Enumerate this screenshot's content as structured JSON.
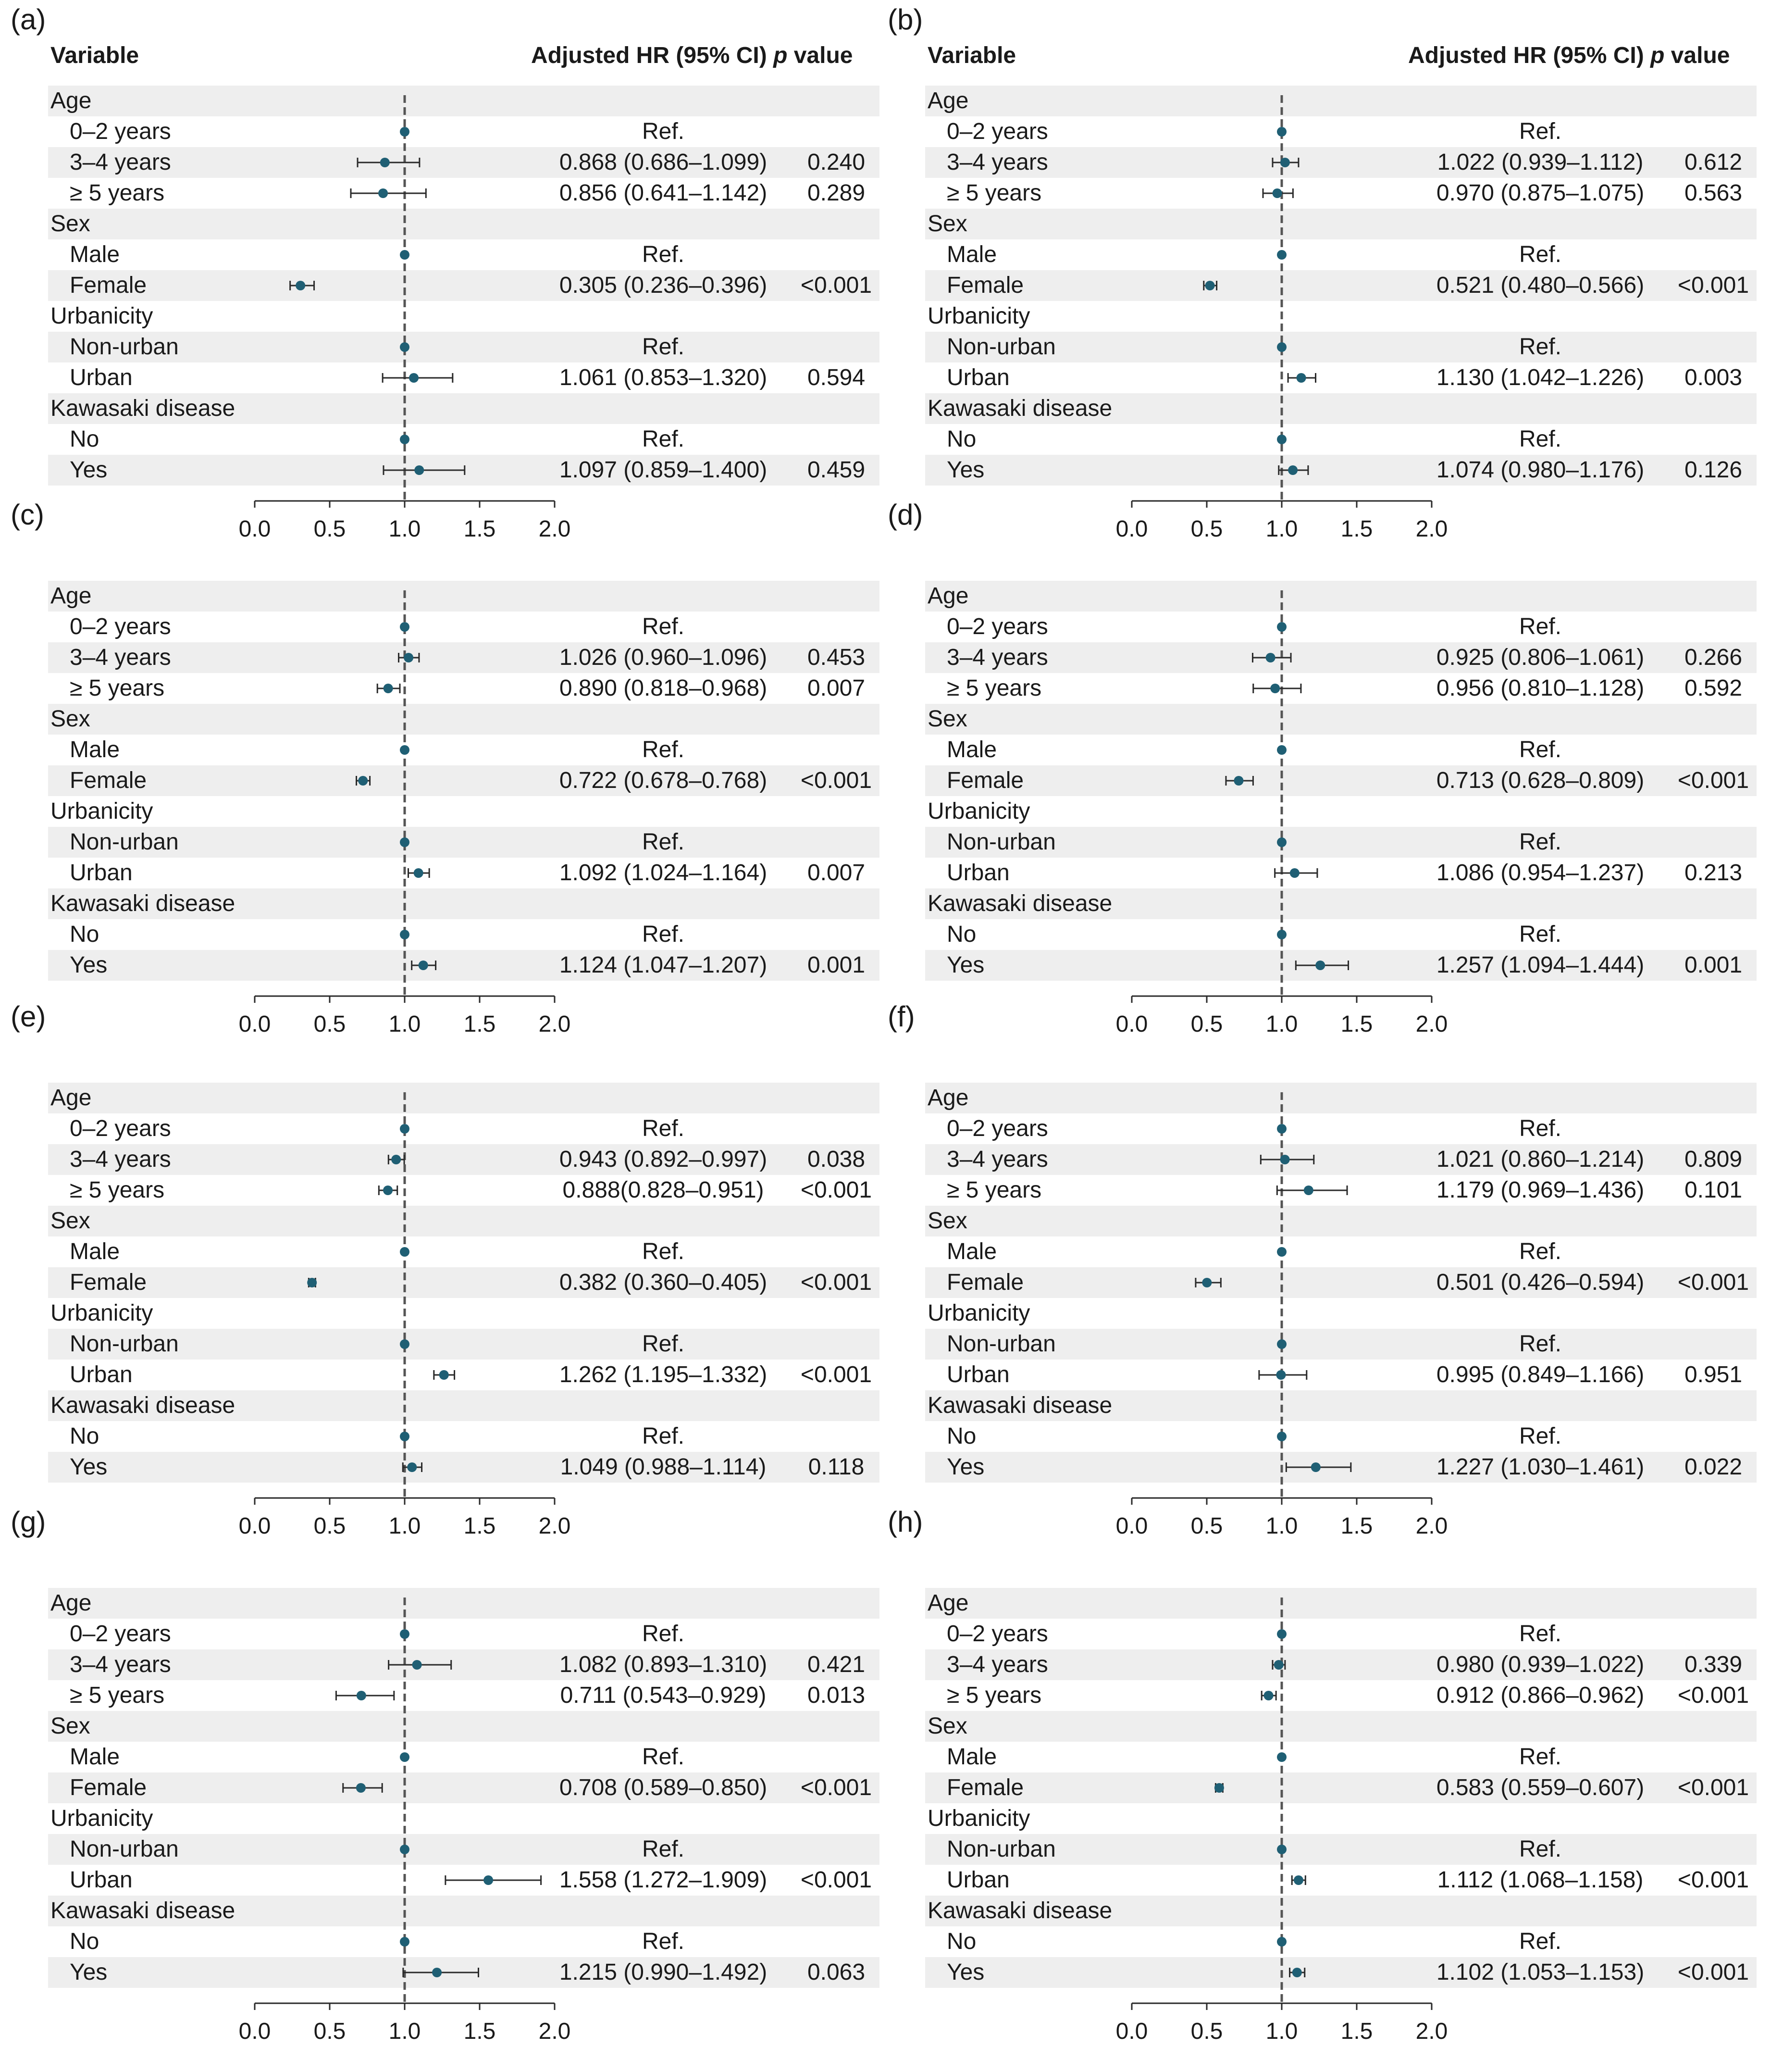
{
  "header": {
    "variable": "Variable",
    "hr": "Adjusted HR (95% CI)",
    "p_italic": "p",
    "p_rest": " value"
  },
  "chart_data": [
    {
      "panel": "(a)",
      "type": "forest",
      "show_header": true,
      "xlim": [
        0,
        2
      ],
      "ref_line": 1,
      "ticks": [
        "0.0",
        "0.5",
        "1.0",
        "1.5",
        "2.0"
      ],
      "rows": [
        {
          "label": "Age",
          "kind": "group"
        },
        {
          "label": "0–2 years",
          "kind": "item",
          "hr": 1,
          "ci": "Ref."
        },
        {
          "label": "3–4 years",
          "kind": "item",
          "hr": 0.868,
          "lo": 0.686,
          "hi": 1.099,
          "ci": "0.868 (0.686–1.099)",
          "p": "0.240"
        },
        {
          "label": "≥ 5 years",
          "kind": "item",
          "hr": 0.856,
          "lo": 0.641,
          "hi": 1.142,
          "ci": "0.856 (0.641–1.142)",
          "p": "0.289"
        },
        {
          "label": "Sex",
          "kind": "group"
        },
        {
          "label": "Male",
          "kind": "item",
          "hr": 1,
          "ci": "Ref."
        },
        {
          "label": "Female",
          "kind": "item",
          "hr": 0.305,
          "lo": 0.236,
          "hi": 0.396,
          "ci": "0.305 (0.236–0.396)",
          "p": "<0.001"
        },
        {
          "label": "Urbanicity",
          "kind": "group"
        },
        {
          "label": "Non-urban",
          "kind": "item",
          "hr": 1,
          "ci": "Ref."
        },
        {
          "label": "Urban",
          "kind": "item",
          "hr": 1.061,
          "lo": 0.853,
          "hi": 1.32,
          "ci": "1.061 (0.853–1.320)",
          "p": "0.594"
        },
        {
          "label": "Kawasaki disease",
          "kind": "group"
        },
        {
          "label": "No",
          "kind": "item",
          "hr": 1,
          "ci": "Ref."
        },
        {
          "label": "Yes",
          "kind": "item",
          "hr": 1.097,
          "lo": 0.859,
          "hi": 1.4,
          "ci": "1.097 (0.859–1.400)",
          "p": "0.459"
        }
      ]
    },
    {
      "panel": "(b)",
      "type": "forest",
      "show_header": true,
      "xlim": [
        0,
        2
      ],
      "ref_line": 1,
      "ticks": [
        "0.0",
        "0.5",
        "1.0",
        "1.5",
        "2.0"
      ],
      "rows": [
        {
          "label": "Age",
          "kind": "group"
        },
        {
          "label": "0–2 years",
          "kind": "item",
          "hr": 1,
          "ci": "Ref."
        },
        {
          "label": "3–4 years",
          "kind": "item",
          "hr": 1.022,
          "lo": 0.939,
          "hi": 1.112,
          "ci": "1.022 (0.939–1.112)",
          "p": "0.612"
        },
        {
          "label": "≥ 5 years",
          "kind": "item",
          "hr": 0.97,
          "lo": 0.875,
          "hi": 1.075,
          "ci": "0.970 (0.875–1.075)",
          "p": "0.563"
        },
        {
          "label": "Sex",
          "kind": "group"
        },
        {
          "label": "Male",
          "kind": "item",
          "hr": 1,
          "ci": "Ref."
        },
        {
          "label": "Female",
          "kind": "item",
          "hr": 0.521,
          "lo": 0.48,
          "hi": 0.566,
          "ci": "0.521 (0.480–0.566)",
          "p": "<0.001"
        },
        {
          "label": "Urbanicity",
          "kind": "group"
        },
        {
          "label": "Non-urban",
          "kind": "item",
          "hr": 1,
          "ci": "Ref."
        },
        {
          "label": "Urban",
          "kind": "item",
          "hr": 1.13,
          "lo": 1.042,
          "hi": 1.226,
          "ci": "1.130 (1.042–1.226)",
          "p": "0.003"
        },
        {
          "label": "Kawasaki disease",
          "kind": "group"
        },
        {
          "label": "No",
          "kind": "item",
          "hr": 1,
          "ci": "Ref."
        },
        {
          "label": "Yes",
          "kind": "item",
          "hr": 1.074,
          "lo": 0.98,
          "hi": 1.176,
          "ci": "1.074 (0.980–1.176)",
          "p": "0.126"
        }
      ]
    },
    {
      "panel": "(c)",
      "type": "forest",
      "show_header": false,
      "xlim": [
        0,
        2
      ],
      "ref_line": 1,
      "ticks": [
        "0.0",
        "0.5",
        "1.0",
        "1.5",
        "2.0"
      ],
      "rows": [
        {
          "label": "Age",
          "kind": "group"
        },
        {
          "label": "0–2 years",
          "kind": "item",
          "hr": 1,
          "ci": "Ref."
        },
        {
          "label": "3–4 years",
          "kind": "item",
          "hr": 1.026,
          "lo": 0.96,
          "hi": 1.096,
          "ci": "1.026 (0.960–1.096)",
          "p": "0.453"
        },
        {
          "label": "≥ 5 years",
          "kind": "item",
          "hr": 0.89,
          "lo": 0.818,
          "hi": 0.968,
          "ci": "0.890 (0.818–0.968)",
          "p": "0.007"
        },
        {
          "label": "Sex",
          "kind": "group"
        },
        {
          "label": "Male",
          "kind": "item",
          "hr": 1,
          "ci": "Ref."
        },
        {
          "label": "Female",
          "kind": "item",
          "hr": 0.722,
          "lo": 0.678,
          "hi": 0.768,
          "ci": "0.722 (0.678–0.768)",
          "p": "<0.001"
        },
        {
          "label": "Urbanicity",
          "kind": "group"
        },
        {
          "label": "Non-urban",
          "kind": "item",
          "hr": 1,
          "ci": "Ref."
        },
        {
          "label": "Urban",
          "kind": "item",
          "hr": 1.092,
          "lo": 1.024,
          "hi": 1.164,
          "ci": "1.092 (1.024–1.164)",
          "p": "0.007"
        },
        {
          "label": "Kawasaki disease",
          "kind": "group"
        },
        {
          "label": "No",
          "kind": "item",
          "hr": 1,
          "ci": "Ref."
        },
        {
          "label": "Yes",
          "kind": "item",
          "hr": 1.124,
          "lo": 1.047,
          "hi": 1.207,
          "ci": "1.124 (1.047–1.207)",
          "p": "0.001"
        }
      ]
    },
    {
      "panel": "(d)",
      "type": "forest",
      "show_header": false,
      "xlim": [
        0,
        2
      ],
      "ref_line": 1,
      "ticks": [
        "0.0",
        "0.5",
        "1.0",
        "1.5",
        "2.0"
      ],
      "rows": [
        {
          "label": "Age",
          "kind": "group"
        },
        {
          "label": "0–2 years",
          "kind": "item",
          "hr": 1,
          "ci": "Ref."
        },
        {
          "label": "3–4 years",
          "kind": "item",
          "hr": 0.925,
          "lo": 0.806,
          "hi": 1.061,
          "ci": "0.925 (0.806–1.061)",
          "p": "0.266"
        },
        {
          "label": "≥ 5 years",
          "kind": "item",
          "hr": 0.956,
          "lo": 0.81,
          "hi": 1.128,
          "ci": "0.956 (0.810–1.128)",
          "p": "0.592"
        },
        {
          "label": "Sex",
          "kind": "group"
        },
        {
          "label": "Male",
          "kind": "item",
          "hr": 1,
          "ci": "Ref."
        },
        {
          "label": "Female",
          "kind": "item",
          "hr": 0.713,
          "lo": 0.628,
          "hi": 0.809,
          "ci": "0.713 (0.628–0.809)",
          "p": "<0.001"
        },
        {
          "label": "Urbanicity",
          "kind": "group"
        },
        {
          "label": "Non-urban",
          "kind": "item",
          "hr": 1,
          "ci": "Ref."
        },
        {
          "label": "Urban",
          "kind": "item",
          "hr": 1.086,
          "lo": 0.954,
          "hi": 1.237,
          "ci": "1.086 (0.954–1.237)",
          "p": "0.213"
        },
        {
          "label": "Kawasaki disease",
          "kind": "group"
        },
        {
          "label": "No",
          "kind": "item",
          "hr": 1,
          "ci": "Ref."
        },
        {
          "label": "Yes",
          "kind": "item",
          "hr": 1.257,
          "lo": 1.094,
          "hi": 1.444,
          "ci": "1.257 (1.094–1.444)",
          "p": "0.001"
        }
      ]
    },
    {
      "panel": "(e)",
      "type": "forest",
      "show_header": false,
      "xlim": [
        0,
        2
      ],
      "ref_line": 1,
      "ticks": [
        "0.0",
        "0.5",
        "1.0",
        "1.5",
        "2.0"
      ],
      "rows": [
        {
          "label": "Age",
          "kind": "group"
        },
        {
          "label": "0–2 years",
          "kind": "item",
          "hr": 1,
          "ci": "Ref."
        },
        {
          "label": "3–4 years",
          "kind": "item",
          "hr": 0.943,
          "lo": 0.892,
          "hi": 0.997,
          "ci": "0.943 (0.892–0.997)",
          "p": "0.038"
        },
        {
          "label": "≥ 5 years",
          "kind": "item",
          "hr": 0.888,
          "lo": 0.828,
          "hi": 0.951,
          "ci": "0.888(0.828–0.951)",
          "p": "<0.001"
        },
        {
          "label": "Sex",
          "kind": "group"
        },
        {
          "label": "Male",
          "kind": "item",
          "hr": 1,
          "ci": "Ref."
        },
        {
          "label": "Female",
          "kind": "item",
          "hr": 0.382,
          "lo": 0.36,
          "hi": 0.405,
          "ci": "0.382 (0.360–0.405)",
          "p": "<0.001"
        },
        {
          "label": "Urbanicity",
          "kind": "group"
        },
        {
          "label": "Non-urban",
          "kind": "item",
          "hr": 1,
          "ci": "Ref."
        },
        {
          "label": "Urban",
          "kind": "item",
          "hr": 1.262,
          "lo": 1.195,
          "hi": 1.332,
          "ci": "1.262 (1.195–1.332)",
          "p": "<0.001"
        },
        {
          "label": "Kawasaki disease",
          "kind": "group"
        },
        {
          "label": "No",
          "kind": "item",
          "hr": 1,
          "ci": "Ref."
        },
        {
          "label": "Yes",
          "kind": "item",
          "hr": 1.049,
          "lo": 0.988,
          "hi": 1.114,
          "ci": "1.049 (0.988–1.114)",
          "p": "0.118"
        }
      ]
    },
    {
      "panel": "(f)",
      "type": "forest",
      "show_header": false,
      "xlim": [
        0,
        2
      ],
      "ref_line": 1,
      "ticks": [
        "0.0",
        "0.5",
        "1.0",
        "1.5",
        "2.0"
      ],
      "rows": [
        {
          "label": "Age",
          "kind": "group"
        },
        {
          "label": "0–2 years",
          "kind": "item",
          "hr": 1,
          "ci": "Ref."
        },
        {
          "label": "3–4 years",
          "kind": "item",
          "hr": 1.021,
          "lo": 0.86,
          "hi": 1.214,
          "ci": "1.021 (0.860–1.214)",
          "p": "0.809"
        },
        {
          "label": "≥ 5 years",
          "kind": "item",
          "hr": 1.179,
          "lo": 0.969,
          "hi": 1.436,
          "ci": "1.179 (0.969–1.436)",
          "p": "0.101"
        },
        {
          "label": "Sex",
          "kind": "group"
        },
        {
          "label": "Male",
          "kind": "item",
          "hr": 1,
          "ci": "Ref."
        },
        {
          "label": "Female",
          "kind": "item",
          "hr": 0.501,
          "lo": 0.426,
          "hi": 0.594,
          "ci": "0.501 (0.426–0.594)",
          "p": "<0.001"
        },
        {
          "label": "Urbanicity",
          "kind": "group"
        },
        {
          "label": "Non-urban",
          "kind": "item",
          "hr": 1,
          "ci": "Ref."
        },
        {
          "label": "Urban",
          "kind": "item",
          "hr": 0.995,
          "lo": 0.849,
          "hi": 1.166,
          "ci": "0.995 (0.849–1.166)",
          "p": "0.951"
        },
        {
          "label": "Kawasaki disease",
          "kind": "group"
        },
        {
          "label": "No",
          "kind": "item",
          "hr": 1,
          "ci": "Ref."
        },
        {
          "label": "Yes",
          "kind": "item",
          "hr": 1.227,
          "lo": 1.03,
          "hi": 1.461,
          "ci": "1.227 (1.030–1.461)",
          "p": "0.022"
        }
      ]
    },
    {
      "panel": "(g)",
      "type": "forest",
      "show_header": false,
      "xlim": [
        0,
        2
      ],
      "ref_line": 1,
      "ticks": [
        "0.0",
        "0.5",
        "1.0",
        "1.5",
        "2.0"
      ],
      "rows": [
        {
          "label": "Age",
          "kind": "group"
        },
        {
          "label": "0–2 years",
          "kind": "item",
          "hr": 1,
          "ci": "Ref."
        },
        {
          "label": "3–4 years",
          "kind": "item",
          "hr": 1.082,
          "lo": 0.893,
          "hi": 1.31,
          "ci": "1.082 (0.893–1.310)",
          "p": "0.421"
        },
        {
          "label": "≥ 5 years",
          "kind": "item",
          "hr": 0.711,
          "lo": 0.543,
          "hi": 0.929,
          "ci": "0.711 (0.543–0.929)",
          "p": "0.013"
        },
        {
          "label": "Sex",
          "kind": "group"
        },
        {
          "label": "Male",
          "kind": "item",
          "hr": 1,
          "ci": "Ref."
        },
        {
          "label": "Female",
          "kind": "item",
          "hr": 0.708,
          "lo": 0.589,
          "hi": 0.85,
          "ci": "0.708 (0.589–0.850)",
          "p": "<0.001"
        },
        {
          "label": "Urbanicity",
          "kind": "group"
        },
        {
          "label": "Non-urban",
          "kind": "item",
          "hr": 1,
          "ci": "Ref."
        },
        {
          "label": "Urban",
          "kind": "item",
          "hr": 1.558,
          "lo": 1.272,
          "hi": 1.909,
          "ci": "1.558 (1.272–1.909)",
          "p": "<0.001"
        },
        {
          "label": "Kawasaki disease",
          "kind": "group"
        },
        {
          "label": "No",
          "kind": "item",
          "hr": 1,
          "ci": "Ref."
        },
        {
          "label": "Yes",
          "kind": "item",
          "hr": 1.215,
          "lo": 0.99,
          "hi": 1.492,
          "ci": "1.215 (0.990–1.492)",
          "p": "0.063"
        }
      ]
    },
    {
      "panel": "(h)",
      "type": "forest",
      "show_header": false,
      "xlim": [
        0,
        2
      ],
      "ref_line": 1,
      "ticks": [
        "0.0",
        "0.5",
        "1.0",
        "1.5",
        "2.0"
      ],
      "rows": [
        {
          "label": "Age",
          "kind": "group"
        },
        {
          "label": "0–2 years",
          "kind": "item",
          "hr": 1,
          "ci": "Ref."
        },
        {
          "label": "3–4 years",
          "kind": "item",
          "hr": 0.98,
          "lo": 0.939,
          "hi": 1.022,
          "ci": "0.980 (0.939–1.022)",
          "p": "0.339"
        },
        {
          "label": "≥ 5 years",
          "kind": "item",
          "hr": 0.912,
          "lo": 0.866,
          "hi": 0.962,
          "ci": "0.912 (0.866–0.962)",
          "p": "<0.001"
        },
        {
          "label": "Sex",
          "kind": "group"
        },
        {
          "label": "Male",
          "kind": "item",
          "hr": 1,
          "ci": "Ref."
        },
        {
          "label": "Female",
          "kind": "item",
          "hr": 0.583,
          "lo": 0.559,
          "hi": 0.607,
          "ci": "0.583 (0.559–0.607)",
          "p": "<0.001"
        },
        {
          "label": "Urbanicity",
          "kind": "group"
        },
        {
          "label": "Non-urban",
          "kind": "item",
          "hr": 1,
          "ci": "Ref."
        },
        {
          "label": "Urban",
          "kind": "item",
          "hr": 1.112,
          "lo": 1.068,
          "hi": 1.158,
          "ci": "1.112 (1.068–1.158)",
          "p": "<0.001"
        },
        {
          "label": "Kawasaki disease",
          "kind": "group"
        },
        {
          "label": "No",
          "kind": "item",
          "hr": 1,
          "ci": "Ref."
        },
        {
          "label": "Yes",
          "kind": "item",
          "hr": 1.102,
          "lo": 1.053,
          "hi": 1.153,
          "ci": "1.102 (1.053–1.153)",
          "p": "<0.001"
        }
      ]
    }
  ],
  "colors": {
    "marker": "#1f5f74",
    "line": "#2a2a2a",
    "ref": "#555555",
    "shade": "#eeeeee"
  }
}
